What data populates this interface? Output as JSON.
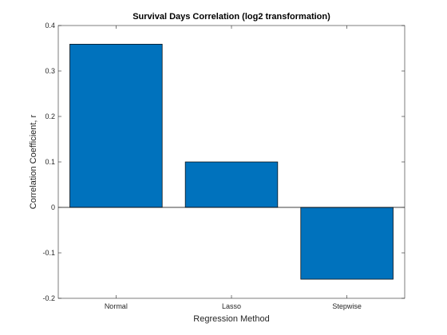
{
  "chart_data": {
    "type": "bar",
    "title": "Survival Days Correlation (log2 transformation)",
    "xlabel": "Regression Method",
    "ylabel": "Correlation Coefficient, r",
    "categories": [
      "Normal",
      "Lasso",
      "Stepwise"
    ],
    "values": [
      0.359,
      0.1,
      -0.158
    ],
    "ylim": [
      -0.2,
      0.4
    ],
    "yticks": [
      -0.2,
      -0.1,
      0,
      0.1,
      0.2,
      0.3,
      0.4
    ],
    "ytick_labels": [
      "-0.2",
      "-0.1",
      "0",
      "0.1",
      "0.2",
      "0.3",
      "0.4"
    ],
    "bar_color": "#0072BD",
    "grid": false,
    "legend": "none"
  }
}
